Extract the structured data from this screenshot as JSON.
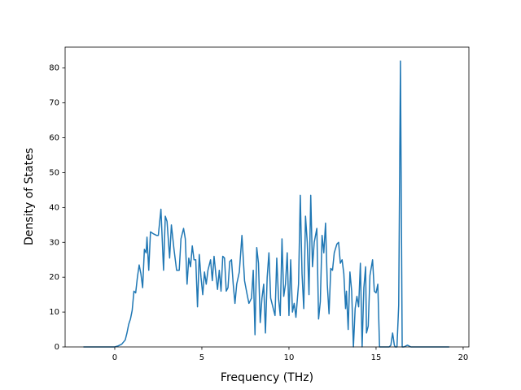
{
  "chart_data": {
    "type": "line",
    "xlabel": "Frequency (THz)",
    "ylabel": "Density of States",
    "x": [
      -1.8,
      0,
      0.2,
      0.4,
      0.6,
      0.7,
      0.8,
      0.9,
      1.0,
      1.1,
      1.2,
      1.3,
      1.4,
      1.5,
      1.6,
      1.7,
      1.8,
      1.85,
      1.95,
      2.05,
      2.2,
      2.4,
      2.5,
      2.65,
      2.8,
      2.9,
      3.0,
      3.15,
      3.25,
      3.4,
      3.55,
      3.7,
      3.8,
      3.95,
      4.05,
      4.15,
      4.25,
      4.35,
      4.45,
      4.55,
      4.65,
      4.75,
      4.85,
      4.95,
      5.05,
      5.15,
      5.25,
      5.35,
      5.5,
      5.6,
      5.7,
      5.8,
      5.9,
      6.0,
      6.1,
      6.2,
      6.3,
      6.4,
      6.5,
      6.6,
      6.7,
      6.8,
      6.9,
      7.0,
      7.15,
      7.3,
      7.45,
      7.6,
      7.7,
      7.85,
      7.95,
      8.05,
      8.15,
      8.25,
      8.35,
      8.45,
      8.55,
      8.65,
      8.75,
      8.85,
      8.95,
      9.1,
      9.2,
      9.3,
      9.4,
      9.5,
      9.6,
      9.7,
      9.8,
      9.9,
      10.0,
      10.1,
      10.2,
      10.3,
      10.4,
      10.55,
      10.65,
      10.75,
      10.85,
      10.95,
      11.05,
      11.15,
      11.25,
      11.35,
      11.45,
      11.6,
      11.7,
      11.8,
      11.9,
      12.0,
      12.1,
      12.2,
      12.3,
      12.4,
      12.5,
      12.6,
      12.75,
      12.85,
      12.95,
      13.05,
      13.15,
      13.25,
      13.3,
      13.4,
      13.5,
      13.6,
      13.7,
      13.8,
      13.9,
      14.0,
      14.1,
      14.2,
      14.3,
      14.4,
      14.45,
      14.55,
      14.65,
      14.8,
      14.9,
      15.0,
      15.1,
      15.2,
      15.4,
      15.6,
      15.75,
      15.85,
      15.95,
      16.05,
      16.1,
      16.2,
      16.3,
      16.4,
      16.5,
      16.6,
      16.8,
      17.0,
      18.0,
      19.2
    ],
    "values": [
      0,
      0,
      0.3,
      0.8,
      2,
      4,
      6.5,
      8,
      10.5,
      16,
      15.5,
      20,
      23.5,
      21,
      17,
      28,
      27,
      31.5,
      22,
      33,
      32.5,
      32,
      32,
      39.5,
      22,
      37.5,
      36,
      25.5,
      35,
      28,
      22,
      22,
      31,
      34,
      31,
      18,
      25.5,
      23,
      29,
      25,
      25,
      11.5,
      26.5,
      20,
      15,
      21.5,
      18,
      22,
      25,
      19,
      26,
      21,
      16.5,
      22,
      16,
      26,
      25.5,
      16,
      17,
      24.5,
      25,
      18,
      12.5,
      18,
      21.5,
      32,
      19,
      15,
      12.5,
      14,
      22,
      3.5,
      28.5,
      24,
      7,
      14,
      18,
      4,
      20,
      27,
      14,
      11,
      9,
      25.5,
      14,
      9,
      31,
      14.5,
      18,
      27,
      9,
      25,
      10,
      12.5,
      8.5,
      18,
      43.5,
      21,
      11,
      37.5,
      30,
      15,
      43.5,
      23,
      30,
      34,
      8,
      13,
      32,
      27,
      35.5,
      18,
      9.5,
      22.5,
      22,
      27,
      29.5,
      30,
      24,
      25,
      21,
      11,
      16,
      5,
      21.5,
      16,
      0,
      11,
      14.5,
      11.5,
      24,
      0,
      17,
      23,
      4,
      6,
      20.5,
      25,
      16,
      15.5,
      18,
      0,
      0,
      0,
      0,
      0.5,
      4,
      0.5,
      0,
      0,
      12,
      82,
      0,
      0,
      0.5,
      0,
      0,
      0
    ],
    "color": "#1f77b4",
    "xlim": [
      -2.85,
      20.33
    ],
    "ylim": [
      0,
      86
    ],
    "xticks": [
      0,
      5,
      10,
      15,
      20
    ],
    "yticks": [
      0,
      10,
      20,
      30,
      40,
      50,
      60,
      70,
      80
    ],
    "grid": false
  }
}
